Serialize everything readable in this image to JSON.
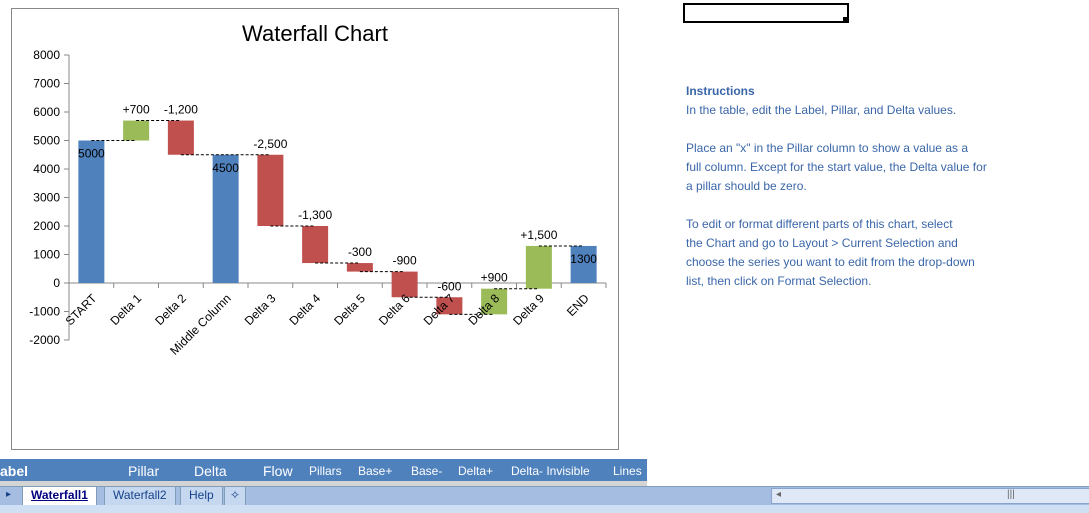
{
  "chart_data": {
    "type": "waterfall",
    "title": "Waterfall Chart",
    "categories": [
      "START",
      "Delta 1",
      "Delta 2",
      "Middle Column",
      "Delta 3",
      "Delta 4",
      "Delta 5",
      "Delta 6",
      "Delta 7",
      "Delta 8",
      "Delta 9",
      "END"
    ],
    "pillar": [
      true,
      false,
      false,
      true,
      false,
      false,
      false,
      false,
      false,
      false,
      false,
      true
    ],
    "values": [
      5000,
      700,
      -1200,
      4500,
      -2500,
      -1300,
      -300,
      -900,
      -600,
      900,
      1500,
      1300
    ],
    "data_labels": [
      "5000",
      "+700",
      "-1,200",
      "4500",
      "-2,500",
      "-1,300",
      "-300",
      "-900",
      "-600",
      "+900",
      "+1,500",
      "1300"
    ],
    "ylim": [
      -2000,
      8000
    ],
    "yticks": [
      "8000",
      "7000",
      "6000",
      "5000",
      "4000",
      "3000",
      "2000",
      "1000",
      "0",
      "-1000",
      "-2000"
    ],
    "grid": false,
    "legend": "none",
    "colors": {
      "pillar": "#4f81bd",
      "increase": "#9bbb59",
      "decrease": "#c0504d"
    }
  },
  "instructions": {
    "heading": "Instructions",
    "lines": [
      "In the table, edit the Label, Pillar, and Delta values.",
      "",
      "Place an \"x\" in the Pillar column to show a value as a",
      "full column. Except for the start value, the Delta value for",
      "a pillar should be zero.",
      "",
      "To edit or format different parts of this chart, select",
      "the Chart and go to Layout > Current Selection and",
      "choose the series you want to edit from the drop-down",
      "list, then click on Format Selection."
    ]
  },
  "table_header": [
    "abel",
    "Pillar",
    "Delta",
    "Flow",
    "Pillars",
    "Base+",
    "Base-",
    "Delta+",
    "Delta- Invisible",
    "Lines"
  ],
  "sheet_tabs": [
    "Waterfall1",
    "Waterfall2",
    "Help"
  ],
  "active_tab": "Waterfall1",
  "colors": {
    "header_bg": "#4f81bd",
    "instruction_text": "#3a66a8"
  }
}
